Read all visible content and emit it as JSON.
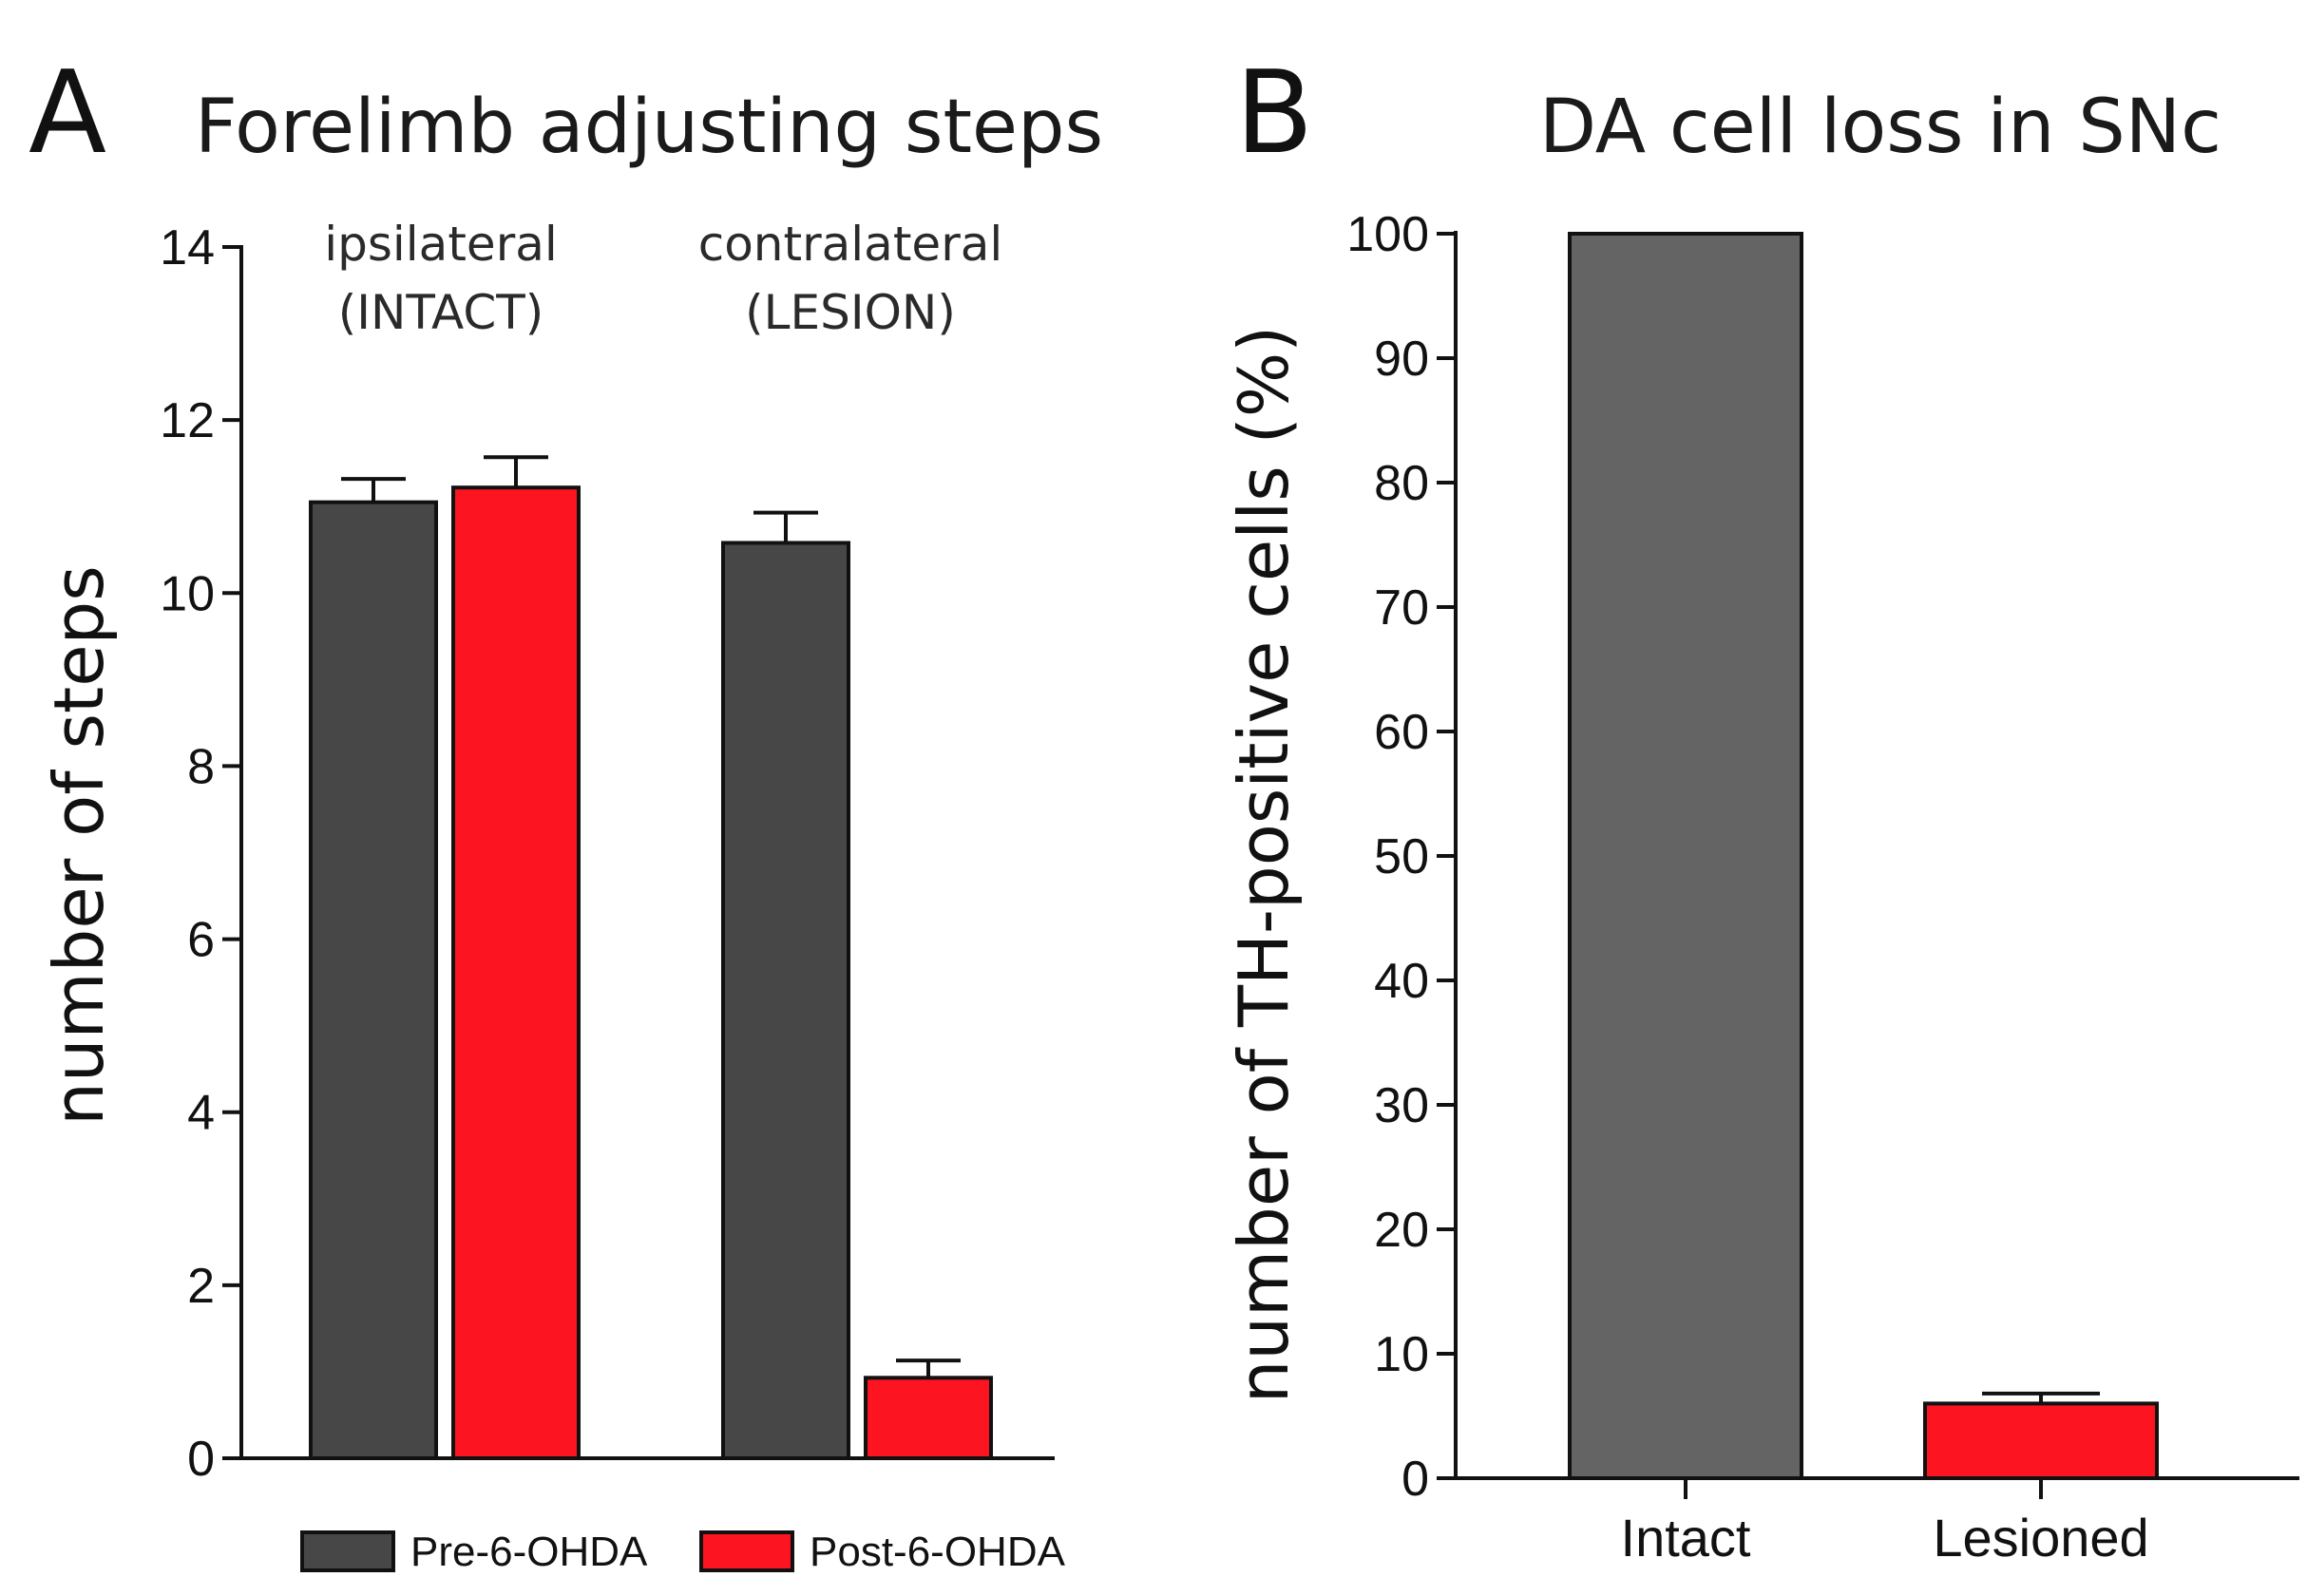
{
  "chart_data": [
    {
      "panel": "A",
      "type": "bar",
      "title": "Forelimb adjusting steps",
      "xlabel": "",
      "ylabel": "number of steps",
      "ylim": [
        0,
        14
      ],
      "yticks": [
        0,
        2,
        4,
        6,
        8,
        10,
        12,
        14
      ],
      "groups": [
        {
          "label_line1": "ipsilateral",
          "label_line2": "(INTACT)"
        },
        {
          "label_line1": "contralateral",
          "label_line2": "(LESION)"
        }
      ],
      "series": [
        {
          "name": "Pre-6-OHDA",
          "color": "#474747",
          "values": [
            11.05,
            10.58
          ],
          "errors": [
            0.27,
            0.35
          ]
        },
        {
          "name": "Post-6-OHDA",
          "color": "#fc1421",
          "values": [
            11.22,
            0.93
          ],
          "errors": [
            0.35,
            0.2
          ]
        }
      ],
      "legend": "bottom"
    },
    {
      "panel": "B",
      "type": "bar",
      "title": "DA cell loss in SNc",
      "xlabel": "",
      "ylabel": "number of TH-positive cells (%)",
      "ylim": [
        0,
        100
      ],
      "yticks": [
        0,
        10,
        20,
        30,
        40,
        50,
        60,
        70,
        80,
        90,
        100
      ],
      "categories": [
        "Intact",
        "Lesioned"
      ],
      "values": [
        100,
        6
      ],
      "errors": [
        0,
        0.8
      ],
      "colors": [
        "#646464",
        "#fc1421"
      ]
    }
  ]
}
